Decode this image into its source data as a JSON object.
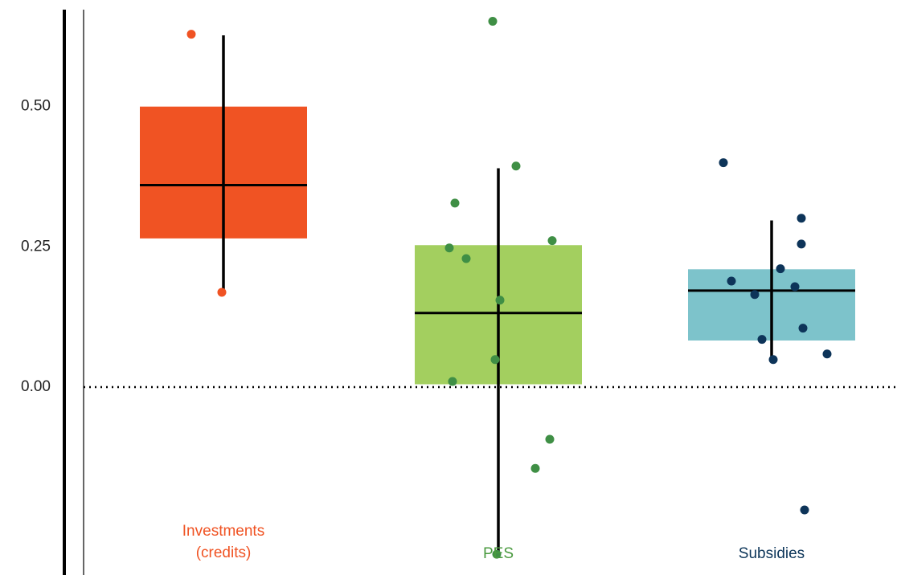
{
  "chart_data": {
    "type": "box",
    "ylim": [
      -0.335,
      0.69
    ],
    "yticks": [
      {
        "value": 0,
        "label": "0.00"
      },
      {
        "value": 0.25,
        "label": "0.25"
      },
      {
        "value": 0.5,
        "label": "0.50"
      }
    ],
    "series": [
      {
        "name": "Investments (credits)",
        "box_color": "#f05323",
        "point_color": "#f05323",
        "label_color": "#f05323",
        "low": 0.265,
        "high": 0.5,
        "mean": 0.36,
        "ci": [
          0.17,
          0.627
        ],
        "points": [
          0.629,
          0.169
        ]
      },
      {
        "name": "PES",
        "box_color": "#a3cf5f",
        "point_color": "#3f8f45",
        "label_color": "#4a9a3f",
        "low": 0.005,
        "high": 0.253,
        "mean": 0.132,
        "ci": [
          -0.298,
          0.39
        ],
        "points": [
          0.652,
          0.394,
          0.328,
          0.248,
          0.229,
          0.261,
          0.155,
          0.049,
          0.01,
          -0.093,
          -0.145,
          -0.298
        ]
      },
      {
        "name": "Subsidies",
        "box_color": "#7dc3cb",
        "point_color": "#0d3459",
        "label_color": "#0c3559",
        "low": 0.083,
        "high": 0.21,
        "mean": 0.172,
        "ci": [
          0.049,
          0.297
        ],
        "points": [
          0.4,
          0.301,
          0.255,
          0.211,
          0.189,
          0.179,
          0.165,
          0.105,
          0.085,
          0.049,
          0.059,
          -0.219
        ]
      }
    ]
  }
}
